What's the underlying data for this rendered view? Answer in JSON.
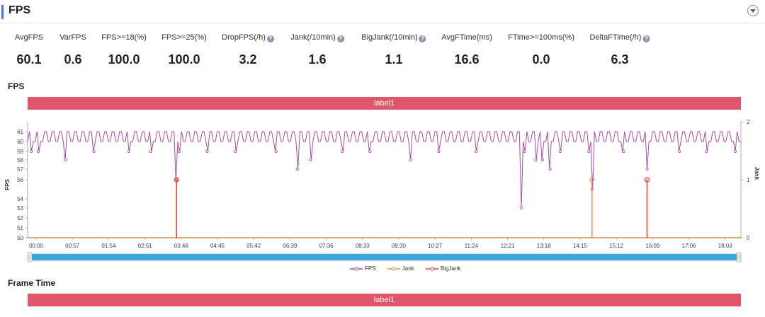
{
  "header": {
    "title": "FPS"
  },
  "metrics": [
    {
      "label": "AvgFPS",
      "value": "60.1",
      "help": false
    },
    {
      "label": "VarFPS",
      "value": "0.6",
      "help": false
    },
    {
      "label": "FPS>=18(%)",
      "value": "100.0",
      "help": false
    },
    {
      "label": "FPS>=25(%)",
      "value": "100.0",
      "help": false
    },
    {
      "label": "DropFPS(/h)",
      "value": "3.2",
      "help": true
    },
    {
      "label": "Jank(/10min)",
      "value": "1.6",
      "help": true
    },
    {
      "label": "BigJank(/10min)",
      "value": "1.1",
      "help": true
    },
    {
      "label": "AvgFTime(ms)",
      "value": "16.6",
      "help": false
    },
    {
      "label": "FTime>=100ms(%)",
      "value": "0.0",
      "help": false
    },
    {
      "label": "DeltaFTime(/h)",
      "value": "6.3",
      "help": true
    }
  ],
  "help_glyph": "?",
  "fps_section": {
    "title": "FPS",
    "label_bar": "label1"
  },
  "frame_section": {
    "title": "Frame Time",
    "label_bar": "label1"
  },
  "colors": {
    "fps": "#a64aa8",
    "jank": "#f08a4b",
    "bigjank": "#e0432e",
    "label_bar": "#e05569",
    "slider": "#3aa6db",
    "accent": "#4a78d1"
  },
  "chart_data": {
    "type": "line",
    "x_tick_labels": [
      "00:00",
      "00:57",
      "01:54",
      "02:51",
      "03:48",
      "04:45",
      "05:42",
      "06:39",
      "07:36",
      "08:33",
      "09:30",
      "10:27",
      "11:24",
      "12:21",
      "13:18",
      "14:15",
      "15:12",
      "16:09",
      "17:06",
      "18:03"
    ],
    "x_unit": "seconds",
    "x_range": [
      0,
      1140
    ],
    "y_left": {
      "label": "FPS",
      "ticks": [
        50,
        51,
        52,
        53,
        54,
        56,
        57,
        58,
        59,
        60,
        61
      ]
    },
    "y_right": {
      "label": "Jank",
      "ticks": [
        0,
        1,
        2
      ],
      "range": [
        0,
        2
      ]
    },
    "legend": {
      "position": "bottom-center",
      "entries": [
        "FPS",
        "Jank",
        "BigJank"
      ]
    },
    "fps_baseline": 60,
    "fps_dips": [
      {
        "t": 6,
        "fps": 59
      },
      {
        "t": 17,
        "fps": 59
      },
      {
        "t": 61,
        "fps": 58
      },
      {
        "t": 106,
        "fps": 59
      },
      {
        "t": 162,
        "fps": 59
      },
      {
        "t": 197,
        "fps": 59
      },
      {
        "t": 238,
        "fps": 56
      },
      {
        "t": 242,
        "fps": 59
      },
      {
        "t": 287,
        "fps": 59
      },
      {
        "t": 332,
        "fps": 59
      },
      {
        "t": 397,
        "fps": 59
      },
      {
        "t": 431,
        "fps": 57
      },
      {
        "t": 452,
        "fps": 58
      },
      {
        "t": 503,
        "fps": 59
      },
      {
        "t": 547,
        "fps": 59
      },
      {
        "t": 612,
        "fps": 58
      },
      {
        "t": 657,
        "fps": 59
      },
      {
        "t": 717,
        "fps": 59
      },
      {
        "t": 789,
        "fps": 53
      },
      {
        "t": 794,
        "fps": 59
      },
      {
        "t": 812,
        "fps": 58
      },
      {
        "t": 823,
        "fps": 58
      },
      {
        "t": 835,
        "fps": 57
      },
      {
        "t": 851,
        "fps": 59
      },
      {
        "t": 897,
        "fps": 59
      },
      {
        "t": 902,
        "fps": 55
      },
      {
        "t": 952,
        "fps": 59
      },
      {
        "t": 990,
        "fps": 57
      },
      {
        "t": 1042,
        "fps": 59
      },
      {
        "t": 1085,
        "fps": 59
      },
      {
        "t": 1131,
        "fps": 59
      }
    ],
    "jank_events": [
      {
        "t": 902,
        "value": 1
      }
    ],
    "bigjank_events": [
      {
        "t": 238,
        "value": 1
      },
      {
        "t": 990,
        "value": 1
      }
    ],
    "grid": false
  }
}
